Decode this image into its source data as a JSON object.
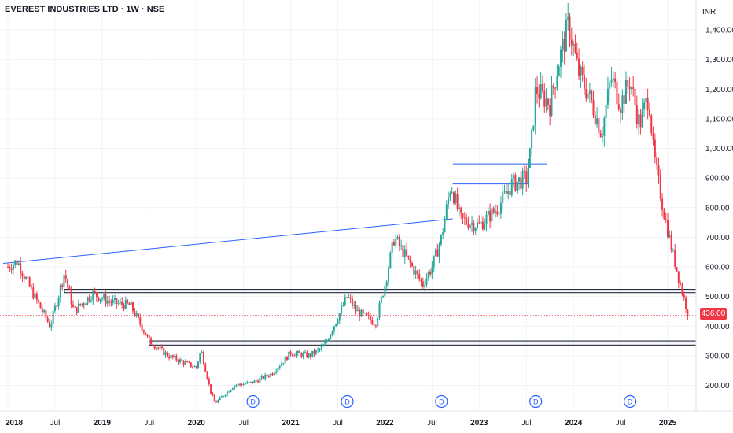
{
  "header": {
    "title": "EVEREST INDUSTRIES LTD · 1W · NSE",
    "currency": "INR"
  },
  "last_price": {
    "label": "436.00",
    "value": 436
  },
  "colors": {
    "up": "#26a69a",
    "down": "#f23645",
    "trendline": "#2962ff",
    "zone": "#131722",
    "grid": "#f0f3fa",
    "axis_text": "#131722"
  },
  "event_marker_label": "D",
  "chart_data": {
    "type": "candlestick",
    "title": "EVEREST INDUSTRIES LTD · 1W · NSE",
    "xlabel": "",
    "ylabel": "",
    "ylim": [
      110,
      1440
    ],
    "x_tick_labels": [
      "2018",
      "Jul",
      "2019",
      "Jul",
      "2020",
      "Jul",
      "2021",
      "Jul",
      "2022",
      "Jul",
      "2023",
      "Jul",
      "2024",
      "Jul",
      "2025"
    ],
    "y_tick_labels": [
      "200.00",
      "300.00",
      "400.00",
      "500.00",
      "600.00",
      "700.00",
      "800.00",
      "900.00",
      "1,000.00",
      "1,100.00",
      "1,200.00",
      "1,300.00",
      "1,400.00"
    ],
    "y_ticks": [
      200,
      300,
      400,
      500,
      600,
      700,
      800,
      900,
      1000,
      1100,
      1200,
      1300,
      1400
    ],
    "price_path": [
      {
        "t": 2018.0,
        "p": 600
      },
      {
        "t": 2018.1,
        "p": 620
      },
      {
        "t": 2018.25,
        "p": 520
      },
      {
        "t": 2018.45,
        "p": 400
      },
      {
        "t": 2018.6,
        "p": 580
      },
      {
        "t": 2018.7,
        "p": 450
      },
      {
        "t": 2018.9,
        "p": 510
      },
      {
        "t": 2019.1,
        "p": 480
      },
      {
        "t": 2019.3,
        "p": 470
      },
      {
        "t": 2019.5,
        "p": 350
      },
      {
        "t": 2019.7,
        "p": 300
      },
      {
        "t": 2019.85,
        "p": 280
      },
      {
        "t": 2020.0,
        "p": 260
      },
      {
        "t": 2020.05,
        "p": 320
      },
      {
        "t": 2020.15,
        "p": 180
      },
      {
        "t": 2020.2,
        "p": 140
      },
      {
        "t": 2020.4,
        "p": 200
      },
      {
        "t": 2020.6,
        "p": 210
      },
      {
        "t": 2020.8,
        "p": 240
      },
      {
        "t": 2021.0,
        "p": 310
      },
      {
        "t": 2021.2,
        "p": 300
      },
      {
        "t": 2021.35,
        "p": 330
      },
      {
        "t": 2021.5,
        "p": 430
      },
      {
        "t": 2021.6,
        "p": 500
      },
      {
        "t": 2021.7,
        "p": 450
      },
      {
        "t": 2021.9,
        "p": 410
      },
      {
        "t": 2022.0,
        "p": 540
      },
      {
        "t": 2022.1,
        "p": 700
      },
      {
        "t": 2022.25,
        "p": 620
      },
      {
        "t": 2022.4,
        "p": 540
      },
      {
        "t": 2022.5,
        "p": 600
      },
      {
        "t": 2022.6,
        "p": 700
      },
      {
        "t": 2022.7,
        "p": 880
      },
      {
        "t": 2022.8,
        "p": 760
      },
      {
        "t": 2023.0,
        "p": 740
      },
      {
        "t": 2023.2,
        "p": 800
      },
      {
        "t": 2023.35,
        "p": 880
      },
      {
        "t": 2023.5,
        "p": 900
      },
      {
        "t": 2023.55,
        "p": 1000
      },
      {
        "t": 2023.6,
        "p": 1200
      },
      {
        "t": 2023.75,
        "p": 1150
      },
      {
        "t": 2023.85,
        "p": 1300
      },
      {
        "t": 2023.95,
        "p": 1420
      },
      {
        "t": 2024.05,
        "p": 1260
      },
      {
        "t": 2024.2,
        "p": 1150
      },
      {
        "t": 2024.3,
        "p": 1050
      },
      {
        "t": 2024.4,
        "p": 1240
      },
      {
        "t": 2024.5,
        "p": 1150
      },
      {
        "t": 2024.6,
        "p": 1230
      },
      {
        "t": 2024.7,
        "p": 1080
      },
      {
        "t": 2024.8,
        "p": 1180
      },
      {
        "t": 2024.85,
        "p": 980
      },
      {
        "t": 2024.95,
        "p": 800
      },
      {
        "t": 2025.05,
        "p": 650
      },
      {
        "t": 2025.15,
        "p": 520
      },
      {
        "t": 2025.22,
        "p": 436
      }
    ],
    "dividend_markers": [
      2020.6,
      2021.6,
      2022.6,
      2023.6,
      2024.6
    ],
    "trendlines": [
      {
        "from": {
          "t": 2017.95,
          "p": 612
        },
        "to": {
          "t": 2022.72,
          "p": 762
        }
      },
      {
        "from": {
          "t": 2022.72,
          "p": 948
        },
        "to": {
          "t": 2023.72,
          "p": 948
        }
      },
      {
        "from": {
          "t": 2022.72,
          "p": 880
        },
        "to": {
          "t": 2023.52,
          "p": 880
        }
      }
    ],
    "zones": [
      {
        "t_start": 2018.6,
        "p_low": 513,
        "p_high": 524
      },
      {
        "t_start": 2019.5,
        "p_low": 336,
        "p_high": 350
      }
    ],
    "last_price": 436
  }
}
